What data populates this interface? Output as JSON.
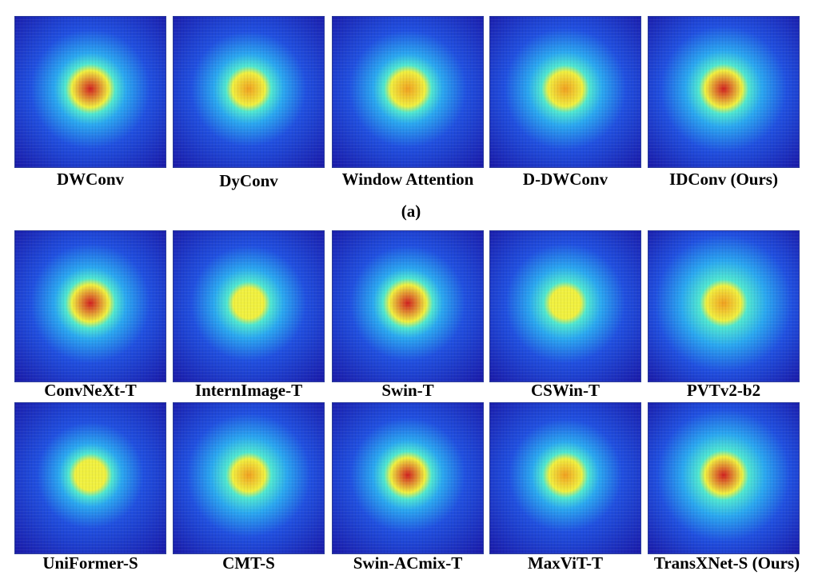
{
  "figure": {
    "row_a": {
      "panels": [
        {
          "label": "DWConv",
          "spread": 0.5,
          "hot": 0.85,
          "noise": 0.1
        },
        {
          "label": "DyConv",
          "spread": 0.45,
          "hot": 0.7,
          "noise": 0.15
        },
        {
          "label": "Window Attention",
          "spread": 0.48,
          "hot": 0.75,
          "noise": 0.12
        },
        {
          "label": "D-DWConv",
          "spread": 0.52,
          "hot": 0.8,
          "noise": 0.12
        },
        {
          "label": "IDConv (Ours)",
          "spread": 0.58,
          "hot": 0.85,
          "noise": 0.1
        }
      ],
      "caption": "(a)"
    },
    "row_b": {
      "panels": [
        {
          "label": "ConvNeXt-T",
          "spread": 0.5,
          "hot": 0.9,
          "noise": 0.08
        },
        {
          "label": "InternImage-T",
          "spread": 0.45,
          "hot": 0.55,
          "noise": 0.1
        },
        {
          "label": "Swin-T",
          "spread": 0.45,
          "hot": 0.85,
          "noise": 0.18
        },
        {
          "label": "CSWin-T",
          "spread": 0.5,
          "hot": 0.55,
          "noise": 0.3
        },
        {
          "label": "PVTv2-b2",
          "spread": 0.7,
          "hot": 0.8,
          "noise": 0.25
        }
      ]
    },
    "row_c": {
      "panels": [
        {
          "label": "UniFormer-S",
          "spread": 0.35,
          "hot": 0.55,
          "noise": 0.2
        },
        {
          "label": "CMT-S",
          "spread": 0.55,
          "hot": 0.72,
          "noise": 0.1
        },
        {
          "label": "Swin-ACmix-T",
          "spread": 0.45,
          "hot": 0.82,
          "noise": 0.15
        },
        {
          "label": "MaxViT-T",
          "spread": 0.42,
          "hot": 0.72,
          "noise": 0.12
        },
        {
          "label": "TransXNet-S (Ours)",
          "spread": 0.65,
          "hot": 0.92,
          "noise": 0.08
        }
      ]
    },
    "colormap": [
      "#1a1aa8",
      "#2050e0",
      "#2aa8f0",
      "#50e8d0",
      "#f0f040",
      "#f0a020",
      "#d02020"
    ]
  }
}
